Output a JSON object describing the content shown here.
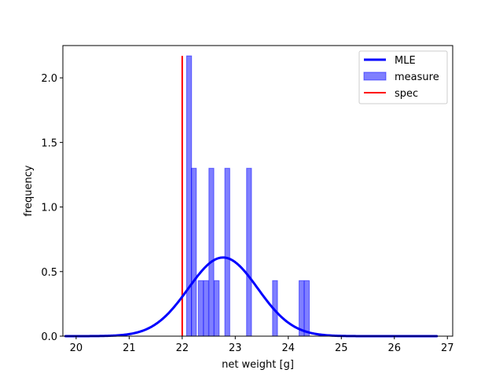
{
  "chart_data": {
    "type": "bar",
    "title": "",
    "xlabel": "net weight [g]",
    "ylabel": "frequency",
    "xlim": [
      19.75,
      27.1
    ],
    "ylim": [
      0,
      2.25
    ],
    "xticks": [
      20,
      21,
      22,
      23,
      24,
      25,
      26,
      27
    ],
    "yticks": [
      0.0,
      0.5,
      1.0,
      1.5,
      2.0
    ],
    "ytick_labels": [
      "0.0",
      "0.5",
      "1.0",
      "1.5",
      "2.0"
    ],
    "grid": false,
    "legend_position": "top-right",
    "legend": [
      "MLE",
      "measure",
      "spec"
    ],
    "series": [
      {
        "name": "MLE",
        "kind": "line",
        "color": "#0000ff",
        "distribution": "normal",
        "mean": 22.77,
        "std": 0.655,
        "x_range": [
          19.8,
          26.8
        ]
      },
      {
        "name": "measure",
        "kind": "histogram",
        "color": "#0000ff",
        "bin_width": 0.093,
        "bins": [
          {
            "x": 22.13,
            "value": 2.17
          },
          {
            "x": 22.22,
            "value": 1.3
          },
          {
            "x": 22.35,
            "value": 0.43
          },
          {
            "x": 22.45,
            "value": 0.43
          },
          {
            "x": 22.55,
            "value": 1.3
          },
          {
            "x": 22.65,
            "value": 0.43
          },
          {
            "x": 22.85,
            "value": 1.3
          },
          {
            "x": 23.26,
            "value": 1.3
          },
          {
            "x": 23.75,
            "value": 0.43
          },
          {
            "x": 24.25,
            "value": 0.43
          },
          {
            "x": 24.35,
            "value": 0.43
          }
        ]
      },
      {
        "name": "spec",
        "kind": "vline",
        "color": "#ff0000",
        "x": 22.0,
        "y_range": [
          0,
          2.17
        ]
      }
    ]
  }
}
